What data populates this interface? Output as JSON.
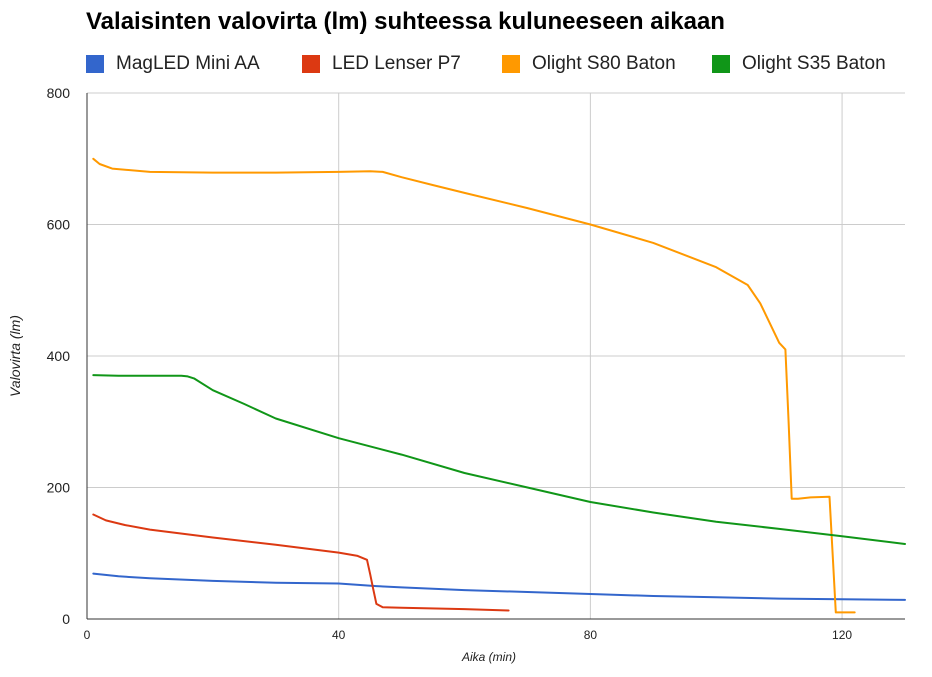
{
  "chart_data": {
    "type": "line",
    "title": "Valaisinten valovirta (lm) suhteessa kuluneeseen aikaan",
    "xlabel": "Aika (min)",
    "ylabel": "Valovirta (lm)",
    "xlim": [
      0,
      130
    ],
    "ylim": [
      0,
      800
    ],
    "xticks": [
      0,
      40,
      80,
      120
    ],
    "yticks": [
      0,
      200,
      400,
      600,
      800
    ],
    "grid": true,
    "legend_position": "top",
    "series": [
      {
        "name": "MagLED Mini AA",
        "color": "#3366cc",
        "points": [
          [
            1,
            69
          ],
          [
            5,
            65
          ],
          [
            10,
            62
          ],
          [
            20,
            58
          ],
          [
            30,
            55
          ],
          [
            40,
            54
          ],
          [
            46,
            50
          ],
          [
            50,
            48
          ],
          [
            60,
            44
          ],
          [
            70,
            41
          ],
          [
            80,
            38
          ],
          [
            90,
            35
          ],
          [
            100,
            33
          ],
          [
            110,
            31
          ],
          [
            120,
            30
          ],
          [
            130,
            29
          ]
        ]
      },
      {
        "name": "LED Lenser P7",
        "color": "#dc3912",
        "points": [
          [
            1,
            159
          ],
          [
            3,
            150
          ],
          [
            6,
            143
          ],
          [
            10,
            136
          ],
          [
            20,
            124
          ],
          [
            30,
            113
          ],
          [
            40,
            101
          ],
          [
            43,
            96
          ],
          [
            44.5,
            90
          ],
          [
            45,
            68
          ],
          [
            45.5,
            45
          ],
          [
            46,
            23
          ],
          [
            47,
            18
          ],
          [
            50,
            17
          ],
          [
            60,
            15
          ],
          [
            67,
            13
          ]
        ]
      },
      {
        "name": "Olight S80 Baton",
        "color": "#ff9900",
        "points": [
          [
            1,
            700
          ],
          [
            2,
            692
          ],
          [
            4,
            685
          ],
          [
            10,
            680
          ],
          [
            20,
            679
          ],
          [
            30,
            679
          ],
          [
            40,
            680
          ],
          [
            45,
            681
          ],
          [
            47,
            680
          ],
          [
            50,
            672
          ],
          [
            55,
            660
          ],
          [
            60,
            648
          ],
          [
            70,
            625
          ],
          [
            80,
            600
          ],
          [
            90,
            572
          ],
          [
            100,
            535
          ],
          [
            105,
            508
          ],
          [
            107,
            480
          ],
          [
            110,
            420
          ],
          [
            111,
            410
          ],
          [
            111.5,
            300
          ],
          [
            112,
            183
          ],
          [
            113,
            183
          ],
          [
            115,
            185
          ],
          [
            118,
            186
          ],
          [
            118.5,
            100
          ],
          [
            119,
            10
          ],
          [
            120,
            10
          ],
          [
            122,
            10
          ]
        ]
      },
      {
        "name": "Olight S35 Baton",
        "color": "#109618",
        "points": [
          [
            1,
            371
          ],
          [
            5,
            370
          ],
          [
            10,
            370
          ],
          [
            15,
            370
          ],
          [
            16,
            369
          ],
          [
            17,
            366
          ],
          [
            20,
            348
          ],
          [
            25,
            327
          ],
          [
            30,
            305
          ],
          [
            40,
            275
          ],
          [
            50,
            250
          ],
          [
            60,
            222
          ],
          [
            70,
            200
          ],
          [
            80,
            178
          ],
          [
            90,
            162
          ],
          [
            100,
            148
          ],
          [
            110,
            137
          ],
          [
            120,
            126
          ],
          [
            130,
            114
          ]
        ]
      }
    ]
  }
}
